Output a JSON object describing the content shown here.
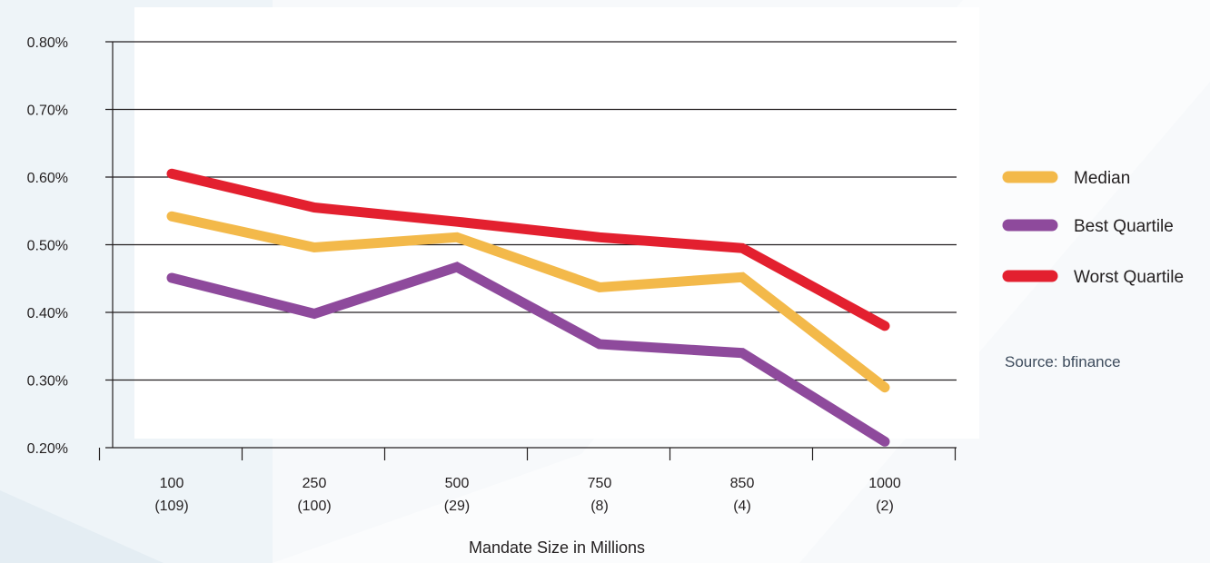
{
  "chart_data": {
    "type": "line",
    "categories": [
      "100",
      "250",
      "500",
      "750",
      "850",
      "1000"
    ],
    "category_counts": [
      "(109)",
      "(100)",
      "(29)",
      "(8)",
      "(4)",
      "(2)"
    ],
    "xlabel": "Mandate Size in Millions",
    "ylabel": "",
    "ylim": [
      0.2,
      0.8
    ],
    "yticks": [
      "0.20%",
      "0.30%",
      "0.40%",
      "0.50%",
      "0.60%",
      "0.70%",
      "0.80%"
    ],
    "grid": true,
    "legend_position": "right",
    "series": [
      {
        "name": "Median",
        "color": "#f3b94a",
        "values": [
          0.542,
          0.496,
          0.511,
          0.437,
          0.452,
          0.289
        ]
      },
      {
        "name": "Best Quartile",
        "color": "#8e4a9c",
        "values": [
          0.451,
          0.398,
          0.467,
          0.353,
          0.34,
          0.209
        ]
      },
      {
        "name": "Worst Quartile",
        "color": "#e3202f",
        "values": [
          0.605,
          0.555,
          0.534,
          0.511,
          0.495,
          0.38
        ]
      }
    ],
    "source": "Source: bfinance"
  }
}
